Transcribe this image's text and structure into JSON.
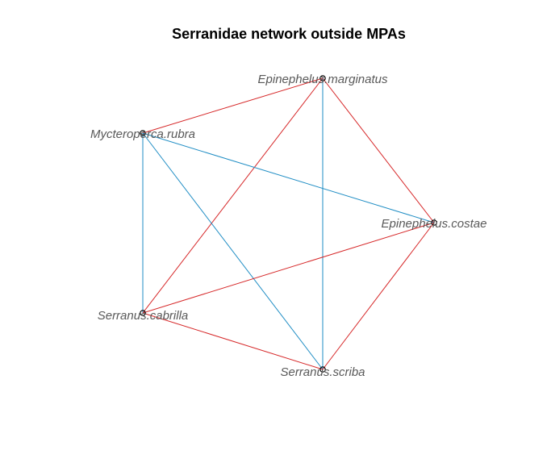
{
  "title": "Serranidae network outside MPAs",
  "colors": {
    "edge_red": "#d62728",
    "edge_blue": "#1f8dc4",
    "label": "#595959",
    "node": "#000000"
  },
  "nodes": [
    {
      "id": "Epinephelus.marginatus",
      "label": "Epinephelus.marginatus"
    },
    {
      "id": "Mycteroperca.rubra",
      "label": "Mycteroperca.rubra"
    },
    {
      "id": "Epinephelus.costae",
      "label": "Epinephelus.costae"
    },
    {
      "id": "Serranus.cabrilla",
      "label": "Serranus.cabrilla"
    },
    {
      "id": "Serranus.scriba",
      "label": "Serranus.scriba"
    }
  ],
  "edges": [
    {
      "source": "Epinephelus.marginatus",
      "target": "Mycteroperca.rubra",
      "color": "red"
    },
    {
      "source": "Epinephelus.marginatus",
      "target": "Epinephelus.costae",
      "color": "red"
    },
    {
      "source": "Epinephelus.marginatus",
      "target": "Serranus.cabrilla",
      "color": "red"
    },
    {
      "source": "Epinephelus.marginatus",
      "target": "Serranus.scriba",
      "color": "blue"
    },
    {
      "source": "Mycteroperca.rubra",
      "target": "Epinephelus.costae",
      "color": "blue"
    },
    {
      "source": "Mycteroperca.rubra",
      "target": "Serranus.cabrilla",
      "color": "blue"
    },
    {
      "source": "Mycteroperca.rubra",
      "target": "Serranus.scriba",
      "color": "blue"
    },
    {
      "source": "Epinephelus.costae",
      "target": "Serranus.cabrilla",
      "color": "red"
    },
    {
      "source": "Epinephelus.costae",
      "target": "Serranus.scriba",
      "color": "red"
    },
    {
      "source": "Serranus.cabrilla",
      "target": "Serranus.scriba",
      "color": "red"
    }
  ]
}
